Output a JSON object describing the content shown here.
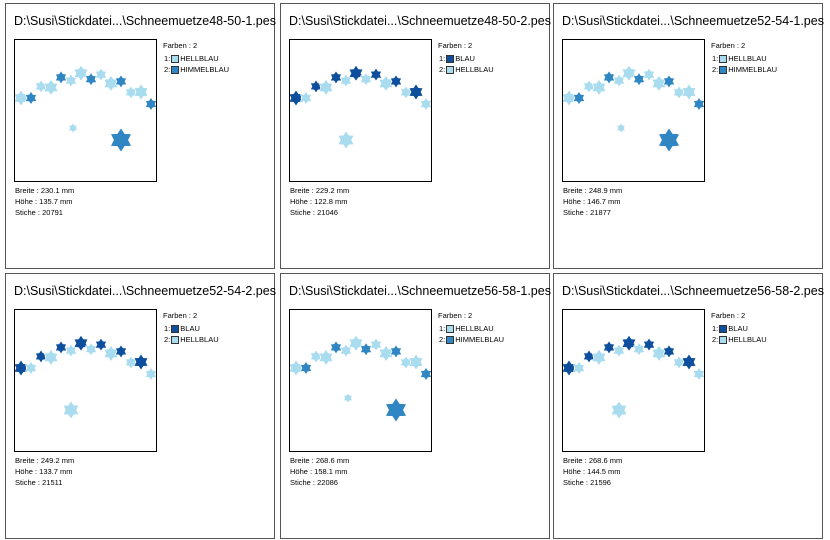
{
  "cards": [
    {
      "title": "D:\\Susi\\Stickdatei...\\Schneemuetze48-50-1.pes",
      "colors_label": "Farben : 2",
      "colors": [
        {
          "index": "1:",
          "name": "HELLBLAU",
          "color": "#a9dcef"
        },
        {
          "index": "2:",
          "name": "HIMMELBLAU",
          "color": "#2f86c2"
        }
      ],
      "info": [
        "Breite : 230.1 mm",
        "Höhe : 135.7 mm",
        "Stiche : 20791"
      ]
    },
    {
      "title": "D:\\Susi\\Stickdatei...\\Schneemuetze48-50-2.pes",
      "colors_label": "Farben : 2",
      "colors": [
        {
          "index": "1:",
          "name": "BLAU",
          "color": "#0d4f9c"
        },
        {
          "index": "2:",
          "name": "HELLBLAU",
          "color": "#a9dcef"
        }
      ],
      "info": [
        "Breite : 229.2 mm",
        "Höhe : 122.8 mm",
        "Stiche : 21046"
      ]
    },
    {
      "title": "D:\\Susi\\Stickdatei...\\Schneemuetze52-54-1.pes",
      "colors_label": "Farben : 2",
      "colors": [
        {
          "index": "1:",
          "name": "HELLBLAU",
          "color": "#a9dcef"
        },
        {
          "index": "2:",
          "name": "HIMMELBLAU",
          "color": "#2f86c2"
        }
      ],
      "info": [
        "Breite : 248.9 mm",
        "Höhe : 146.7 mm",
        "Stiche : 21877"
      ]
    },
    {
      "title": "D:\\Susi\\Stickdatei...\\Schneemuetze52-54-2.pes",
      "colors_label": "Farben : 2",
      "colors": [
        {
          "index": "1:",
          "name": "BLAU",
          "color": "#0d4f9c"
        },
        {
          "index": "2:",
          "name": "HELLBLAU",
          "color": "#a9dcef"
        }
      ],
      "info": [
        "Breite : 249.2 mm",
        "Höhe : 133.7 mm",
        "Stiche : 21511"
      ]
    },
    {
      "title": "D:\\Susi\\Stickdatei...\\Schneemuetze56-58-1.pes",
      "colors_label": "Farben : 2",
      "colors": [
        {
          "index": "1:",
          "name": "HELLBLAU",
          "color": "#a9dcef"
        },
        {
          "index": "2:",
          "name": "HIMMELBLAU",
          "color": "#2f86c2"
        }
      ],
      "info": [
        "Breite : 268.6 mm",
        "Höhe : 158.1 mm",
        "Stiche : 22086"
      ]
    },
    {
      "title": "D:\\Susi\\Stickdatei...\\Schneemuetze56-58-2.pes",
      "colors_label": "Farben : 2",
      "colors": [
        {
          "index": "1:",
          "name": "BLAU",
          "color": "#0d4f9c"
        },
        {
          "index": "2:",
          "name": "HELLBLAU",
          "color": "#a9dcef"
        }
      ],
      "info": [
        "Breite : 268.6 mm",
        "Höhe : 144.5 mm",
        "Stiche : 21596"
      ]
    }
  ]
}
